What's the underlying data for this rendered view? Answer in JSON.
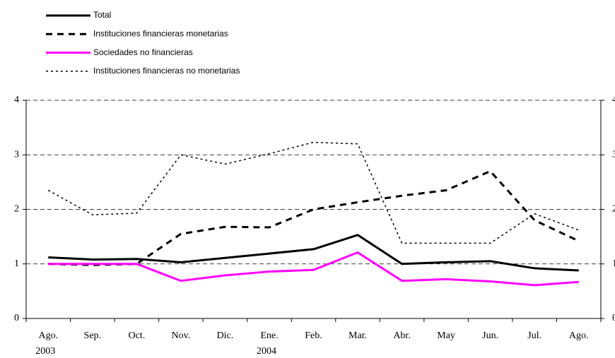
{
  "chart_data": {
    "type": "line",
    "categories": [
      "Ago.",
      "Sep.",
      "Oct.",
      "Nov.",
      "Dic.",
      "Ene.",
      "Feb.",
      "Mar.",
      "Abr.",
      "May",
      "Jun.",
      "Jul.",
      "Ago."
    ],
    "x_group_labels": [
      "2003",
      null,
      null,
      null,
      null,
      "2004",
      null,
      null,
      null,
      null,
      null,
      null,
      null
    ],
    "series": [
      {
        "name": "Total",
        "color": "#000000",
        "style": "solid",
        "width": 3,
        "values": [
          1.12,
          1.08,
          1.09,
          1.03,
          1.11,
          1.19,
          1.27,
          1.53,
          1.0,
          1.03,
          1.05,
          0.92,
          0.88
        ]
      },
      {
        "name": "Instituciones financieras monetarias",
        "color": "#000000",
        "style": "dashed",
        "width": 3,
        "values": [
          1.0,
          0.98,
          1.0,
          1.55,
          1.68,
          1.67,
          2.0,
          2.13,
          2.25,
          2.35,
          2.7,
          1.8,
          1.42
        ]
      },
      {
        "name": "Sociedades no financieras",
        "color": "#ff00ff",
        "style": "solid",
        "width": 3,
        "values": [
          1.0,
          1.0,
          1.0,
          0.69,
          0.79,
          0.86,
          0.89,
          1.21,
          0.69,
          0.72,
          0.68,
          0.61,
          0.67
        ]
      },
      {
        "name": "Instituciones financieras no monetarias",
        "color": "#000000",
        "style": "dotted",
        "width": 1.5,
        "values": [
          2.35,
          1.9,
          1.93,
          3.0,
          2.83,
          3.02,
          3.23,
          3.2,
          1.38,
          1.38,
          1.38,
          1.92,
          1.62
        ]
      }
    ],
    "ylim": [
      0,
      4
    ],
    "yticks": [
      0,
      1,
      2,
      3,
      4
    ],
    "y2lim": [
      0,
      4
    ],
    "y2ticks": [
      0,
      1,
      2,
      3,
      4
    ],
    "grid": true,
    "legend": "top-left"
  }
}
